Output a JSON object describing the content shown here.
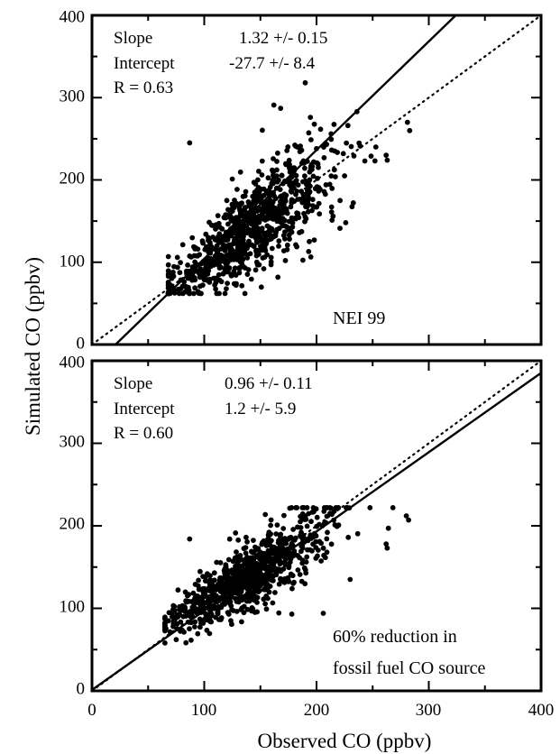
{
  "figure": {
    "ylabel": "Simulated CO (ppbv)",
    "xlabel": "Observed CO (ppbv)"
  },
  "chart_data": [
    {
      "type": "scatter",
      "xlim": [
        0,
        400
      ],
      "ylim": [
        0,
        400
      ],
      "x_ticks": [],
      "y_ticks": [
        "0",
        "100",
        "200",
        "300",
        "400"
      ],
      "stats": {
        "slope_label": "Slope",
        "slope_value": "1.32 +/- 0.15",
        "intercept_label": "Intercept",
        "intercept_value": "-27.7  +/- 8.4",
        "r_text": "R = 0.63"
      },
      "annotation": [
        "NEI 99"
      ],
      "fit_line": {
        "slope": 1.32,
        "intercept": -27.7,
        "style": "solid"
      },
      "one_to_one_line": {
        "slope": 1.0,
        "intercept": 0.0,
        "style": "dotted"
      },
      "cluster": {
        "x_mean": 140,
        "x_sd": 33,
        "y_slope": 1.0,
        "y_offset": 0,
        "y_scatter": 28,
        "x_min": 68,
        "x_max": 270,
        "y_min": 62,
        "y_max": 300
      },
      "outliers": [
        [
          190,
          318
        ],
        [
          283,
          260
        ],
        [
          281,
          270
        ],
        [
          263,
          224
        ],
        [
          262,
          230
        ],
        [
          213,
          256
        ],
        [
          221,
          175
        ],
        [
          226,
          148
        ],
        [
          193,
          113
        ],
        [
          178,
          176
        ],
        [
          236,
          283
        ],
        [
          87,
          245
        ],
        [
          162,
          291
        ],
        [
          168,
          287
        ]
      ]
    },
    {
      "type": "scatter",
      "xlim": [
        0,
        400
      ],
      "ylim": [
        0,
        400
      ],
      "x_ticks": [
        "0",
        "100",
        "200",
        "300",
        "400"
      ],
      "y_ticks": [
        "0",
        "100",
        "200",
        "300",
        "400"
      ],
      "stats": {
        "slope_label": "Slope",
        "slope_value": "0.96 +/- 0.11",
        "intercept_label": "Intercept",
        "intercept_value": "1.2  +/- 5.9",
        "r_text": "R = 0.60"
      },
      "annotation": [
        "60% reduction in",
        "fossil fuel CO source"
      ],
      "fit_line": {
        "slope": 0.96,
        "intercept": 1.2,
        "style": "solid"
      },
      "one_to_one_line": {
        "slope": 1.0,
        "intercept": 0.0,
        "style": "dotted"
      },
      "cluster": {
        "x_mean": 140,
        "x_sd": 30,
        "y_slope": 0.8,
        "y_offset": 28,
        "y_scatter": 20,
        "x_min": 65,
        "x_max": 268,
        "y_min": 58,
        "y_max": 222
      },
      "outliers": [
        [
          280,
          212
        ],
        [
          282,
          207
        ],
        [
          264,
          197
        ],
        [
          262,
          178
        ],
        [
          263,
          173
        ],
        [
          219,
          222
        ],
        [
          230,
          135
        ],
        [
          206,
          94
        ],
        [
          87,
          184
        ],
        [
          178,
          93
        ]
      ]
    }
  ]
}
